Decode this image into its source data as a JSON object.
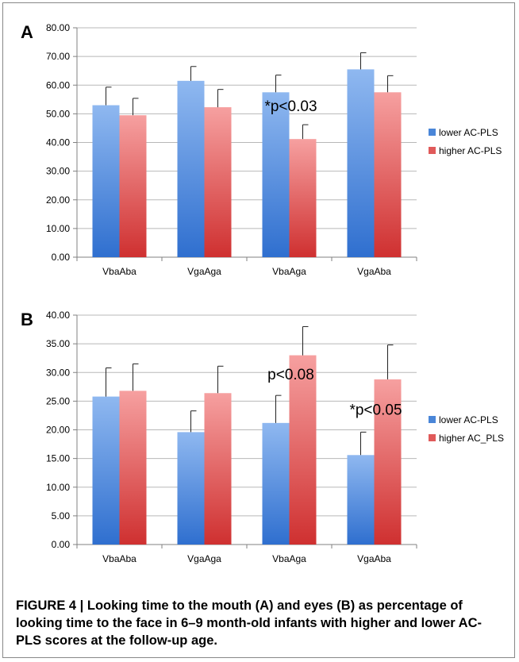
{
  "caption": "FIGURE 4 | Looking time to the mouth (A) and eyes (B) as percentage of looking time to the face in 6–9 month-old infants with higher and lower AC-PLS scores at the follow-up age.",
  "colors": {
    "lower": "#4a86d8",
    "higher": "#e05a5a",
    "grid": "#b8b8b8",
    "axis": "#808080"
  },
  "chart_data": [
    {
      "type": "bar",
      "panel_label": "A",
      "categories": [
        "VbaAba",
        "VgaAga",
        "VbaAga",
        "VgaAba"
      ],
      "ylim": [
        0,
        80
      ],
      "yticks": [
        "0.00",
        "10.00",
        "20.00",
        "30.00",
        "40.00",
        "50.00",
        "60.00",
        "70.00",
        "80.00"
      ],
      "ytick_values": [
        0,
        10,
        20,
        30,
        40,
        50,
        60,
        70,
        80
      ],
      "grid": true,
      "legend_position": "right",
      "series": [
        {
          "name": "lower AC-PLS",
          "values": [
            53.0,
            61.5,
            57.5,
            65.5
          ],
          "errors": [
            6.3,
            5.0,
            6.0,
            5.8
          ]
        },
        {
          "name": "higher AC-PLS",
          "values": [
            49.5,
            52.3,
            41.2,
            57.5
          ],
          "errors": [
            5.9,
            6.2,
            5.0,
            5.8
          ]
        }
      ],
      "annotations": [
        {
          "text": "*p<0.03",
          "category_index": 2,
          "value": 51
        }
      ]
    },
    {
      "type": "bar",
      "panel_label": "B",
      "categories": [
        "VbaAba",
        "VgaAga",
        "VbaAga",
        "VgaAba"
      ],
      "ylim": [
        0,
        40
      ],
      "yticks": [
        "0.00",
        "5.00",
        "10.00",
        "15.00",
        "20.00",
        "25.00",
        "30.00",
        "35.00",
        "40.00"
      ],
      "ytick_values": [
        0,
        5,
        10,
        15,
        20,
        25,
        30,
        35,
        40
      ],
      "grid": true,
      "legend_position": "right",
      "series": [
        {
          "name": "lower AC-PLS",
          "values": [
            25.8,
            19.6,
            21.2,
            15.6
          ],
          "errors": [
            5.0,
            3.7,
            4.8,
            4.0
          ]
        },
        {
          "name": "higher AC_PLS",
          "values": [
            26.8,
            26.4,
            33.0,
            28.8
          ],
          "errors": [
            4.7,
            4.7,
            5.0,
            6.0
          ]
        }
      ],
      "annotations": [
        {
          "text": "p<0.08",
          "category_index": 2,
          "value": 28.8
        },
        {
          "text": "*p<0.05",
          "category_index": 3,
          "value": 22.6
        }
      ]
    }
  ]
}
